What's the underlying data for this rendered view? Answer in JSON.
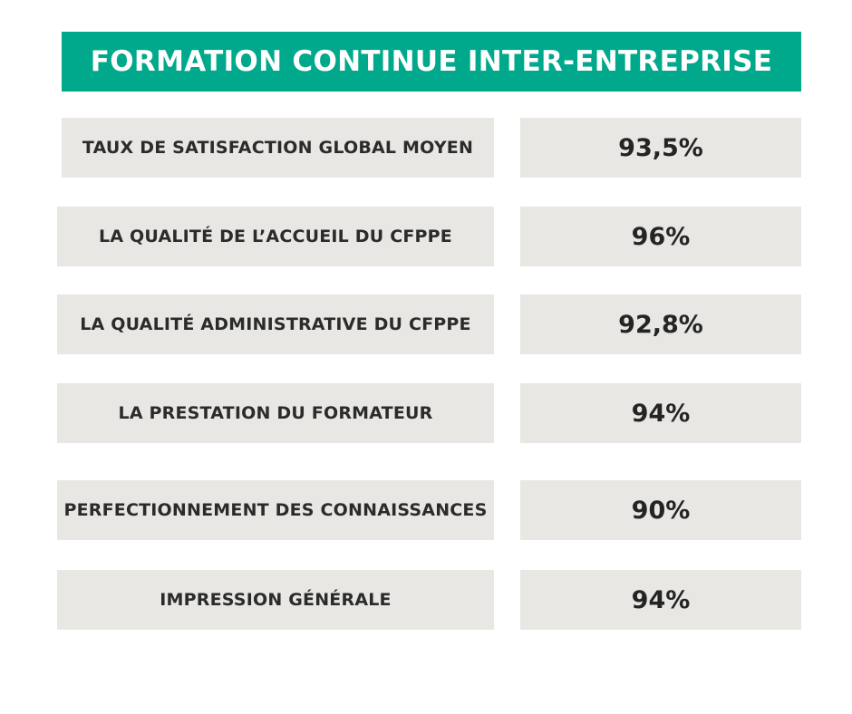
{
  "header": {
    "title": "FORMATION CONTINUE INTER-ENTREPRISE"
  },
  "colors": {
    "accent": "#00a88c",
    "cell_background": "#e8e7e4",
    "text": "#2b2b2b"
  },
  "rows": [
    {
      "label": "TAUX DE SATISFACTION GLOBAL MOYEN",
      "value": "93,5%"
    },
    {
      "label": "LA QUALITÉ DE L’ACCUEIL DU CFPPE",
      "value": "96%"
    },
    {
      "label": "LA QUALITÉ ADMINISTRATIVE DU CFPPE",
      "value": "92,8%"
    },
    {
      "label": "LA PRESTATION DU FORMATEUR",
      "value": "94%"
    },
    {
      "label": "PERFECTIONNEMENT DES CONNAISSANCES",
      "value": "90%"
    },
    {
      "label": "IMPRESSION GÉNÉRALE",
      "value": "94%"
    }
  ]
}
